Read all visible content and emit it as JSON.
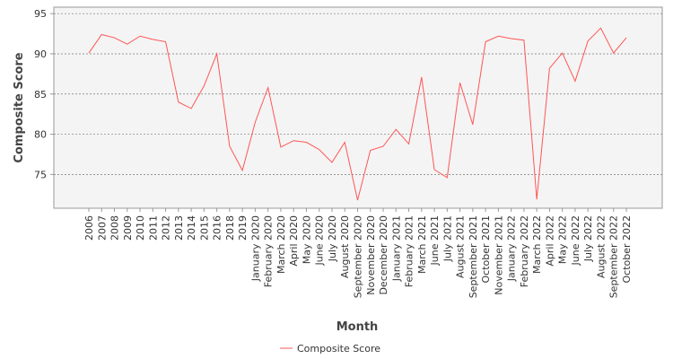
{
  "chart_data": {
    "type": "line",
    "x_label": "Month",
    "y_label": "Composite Score",
    "categories": [
      "2006",
      "2007",
      "2008",
      "2009",
      "2010",
      "2011",
      "2012",
      "2013",
      "2014",
      "2015",
      "2016",
      "2018",
      "2019",
      "January 2020",
      "February 2020",
      "March 2020",
      "April 2020",
      "May 2020",
      "June 2020",
      "July 2020",
      "August 2020",
      "September 2020",
      "November 2020",
      "December 2020",
      "January 2021",
      "February 2021",
      "March 2021",
      "June 2021",
      "July 2021",
      "August 2021",
      "September 2021",
      "October 2021",
      "November 2021",
      "January 2022",
      "February 2022",
      "March 2022",
      "April 2022",
      "May 2022",
      "June 2022",
      "July 2022",
      "August 2022",
      "September 2022",
      "October 2022"
    ],
    "series": [
      {
        "name": "Composite Score",
        "color": "#ff5555",
        "values": [
          90.1,
          92.4,
          92.0,
          91.2,
          92.2,
          91.8,
          91.5,
          84.0,
          83.2,
          86.0,
          90.0,
          78.5,
          75.5,
          81.5,
          85.8,
          78.4,
          79.2,
          79.0,
          78.1,
          76.5,
          79.0,
          71.8,
          78.0,
          78.5,
          80.6,
          78.8,
          87.1,
          75.6,
          74.6,
          86.4,
          81.2,
          91.5,
          92.2,
          91.9,
          91.7,
          71.9,
          88.2,
          90.1,
          86.6,
          91.6,
          93.2,
          90.1,
          92.0
        ]
      }
    ],
    "ylim": [
      70.8,
      95.8
    ],
    "yticks": [
      75,
      80,
      85,
      90,
      95
    ],
    "grid": true,
    "legend": "bottom"
  }
}
